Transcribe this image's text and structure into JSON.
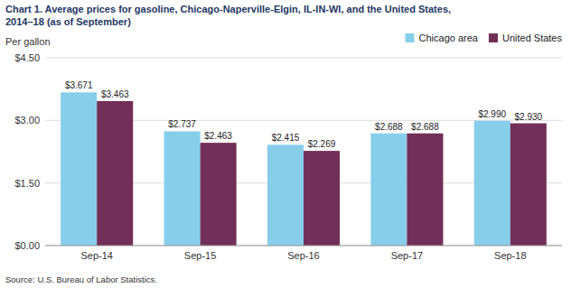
{
  "chart_data": {
    "type": "bar",
    "title": "Chart 1. Average prices for gasoline, Chicago-Naperville-Elgin, IL-IN-WI, and the United States,",
    "subtitle": "2014–18  (as of September)",
    "ylabel": "Per gallon",
    "source": "Source: U.S. Bureau of Labor Statistics.",
    "categories": [
      "Sep-14",
      "Sep-15",
      "Sep-16",
      "Sep-17",
      "Sep-18"
    ],
    "series": [
      {
        "name": "Chicago area",
        "color": "#87CEEB",
        "values": [
          3.671,
          2.737,
          2.415,
          2.688,
          2.99
        ],
        "value_labels": [
          "$3.671",
          "$2.737",
          "$2.415",
          "$2.688",
          "$2.990"
        ]
      },
      {
        "name": "United States",
        "color": "#722F57",
        "values": [
          3.463,
          2.463,
          2.269,
          2.688,
          2.93
        ],
        "value_labels": [
          "$3.463",
          "$2.463",
          "$2.269",
          "$2.688",
          "$2.930"
        ]
      }
    ],
    "ylim": [
      0,
      4.5
    ],
    "yticks": [
      {
        "value": 0.0,
        "label": "$0.00"
      },
      {
        "value": 1.5,
        "label": "$1.50"
      },
      {
        "value": 3.0,
        "label": "$3.00"
      },
      {
        "value": 4.5,
        "label": "$4.50"
      }
    ],
    "grid": true,
    "legend": "upper right",
    "data_labels": true
  }
}
